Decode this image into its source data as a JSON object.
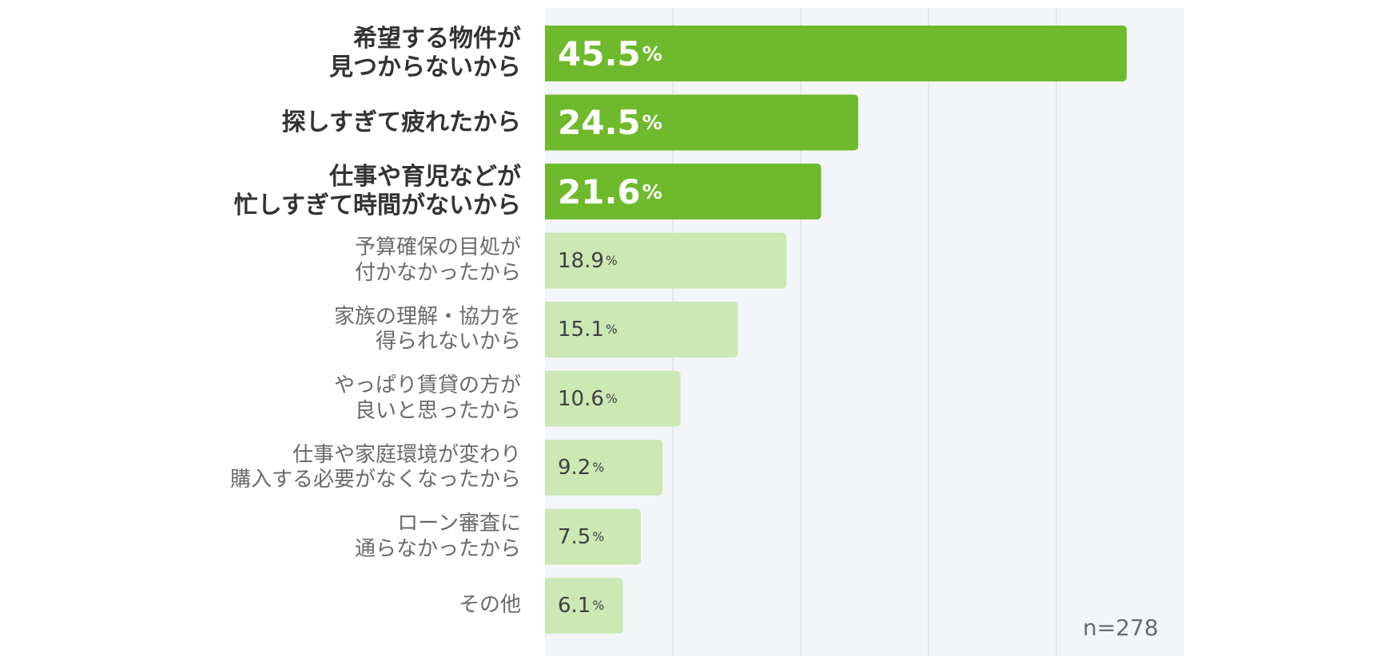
{
  "chart_data": {
    "type": "bar",
    "orientation": "horizontal",
    "categories": [
      "希望する物件が\n見つからないから",
      "探しすぎて疲れたから",
      "仕事や育児などが\n忙しすぎて時間がないから",
      "予算確保の目処が\n付かなかったから",
      "家族の理解・協力を\n得られないから",
      "やっぱり賃貸の方が\n良いと思ったから",
      "仕事や家庭環境が変わり\n購入する必要がなくなったから",
      "ローン審査に\n通らなかったから",
      "その他"
    ],
    "values": [
      45.5,
      24.5,
      21.6,
      18.9,
      15.1,
      10.6,
      9.2,
      7.5,
      6.1
    ],
    "value_labels": [
      "45.5",
      "24.5",
      "21.6",
      "18.9",
      "15.1",
      "10.6",
      "9.2",
      "7.5",
      "6.1"
    ],
    "unit": "%",
    "highlight_top": 3,
    "xlim": [
      0,
      50
    ],
    "gridlines": [
      10,
      20,
      30,
      40
    ],
    "grid": true,
    "colors": {
      "highlight": "#6fba2c",
      "normal": "#cce8b5",
      "plot_background": "#f3f6f9",
      "grid": "#e3e7ea"
    },
    "note": "n=278"
  }
}
